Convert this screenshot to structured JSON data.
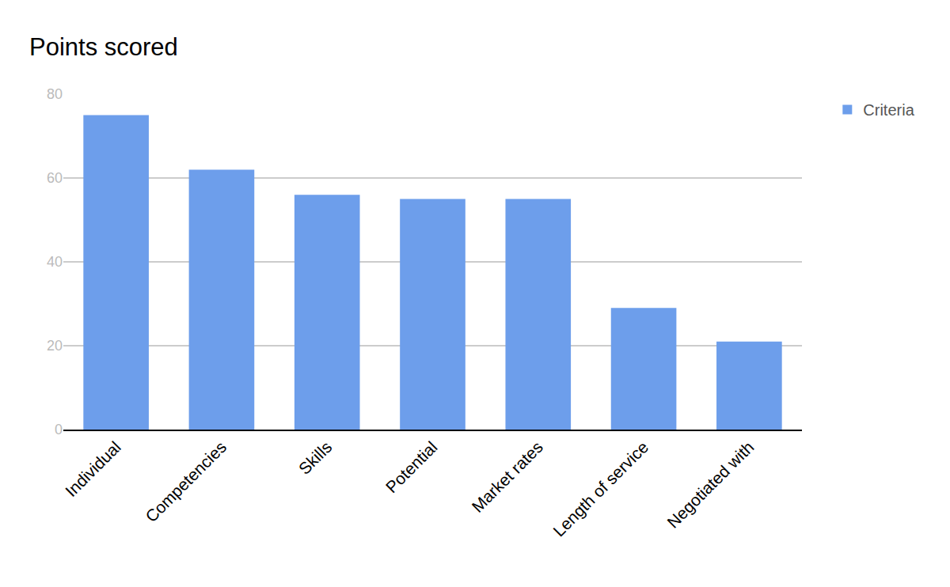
{
  "chart_data": {
    "type": "bar",
    "title": "Points scored",
    "categories": [
      "Individual",
      "Competencies",
      "Skills",
      "Potential",
      "Market rates",
      "Length of service",
      "Negotiated with"
    ],
    "series": [
      {
        "name": "Criteria",
        "color": "#6d9eeb",
        "values": [
          75,
          62,
          56,
          55,
          55,
          29,
          21
        ]
      }
    ],
    "ylim": [
      0,
      80
    ],
    "yticks": [
      0,
      20,
      40,
      60,
      80
    ],
    "grid": true,
    "legend": "top right"
  }
}
